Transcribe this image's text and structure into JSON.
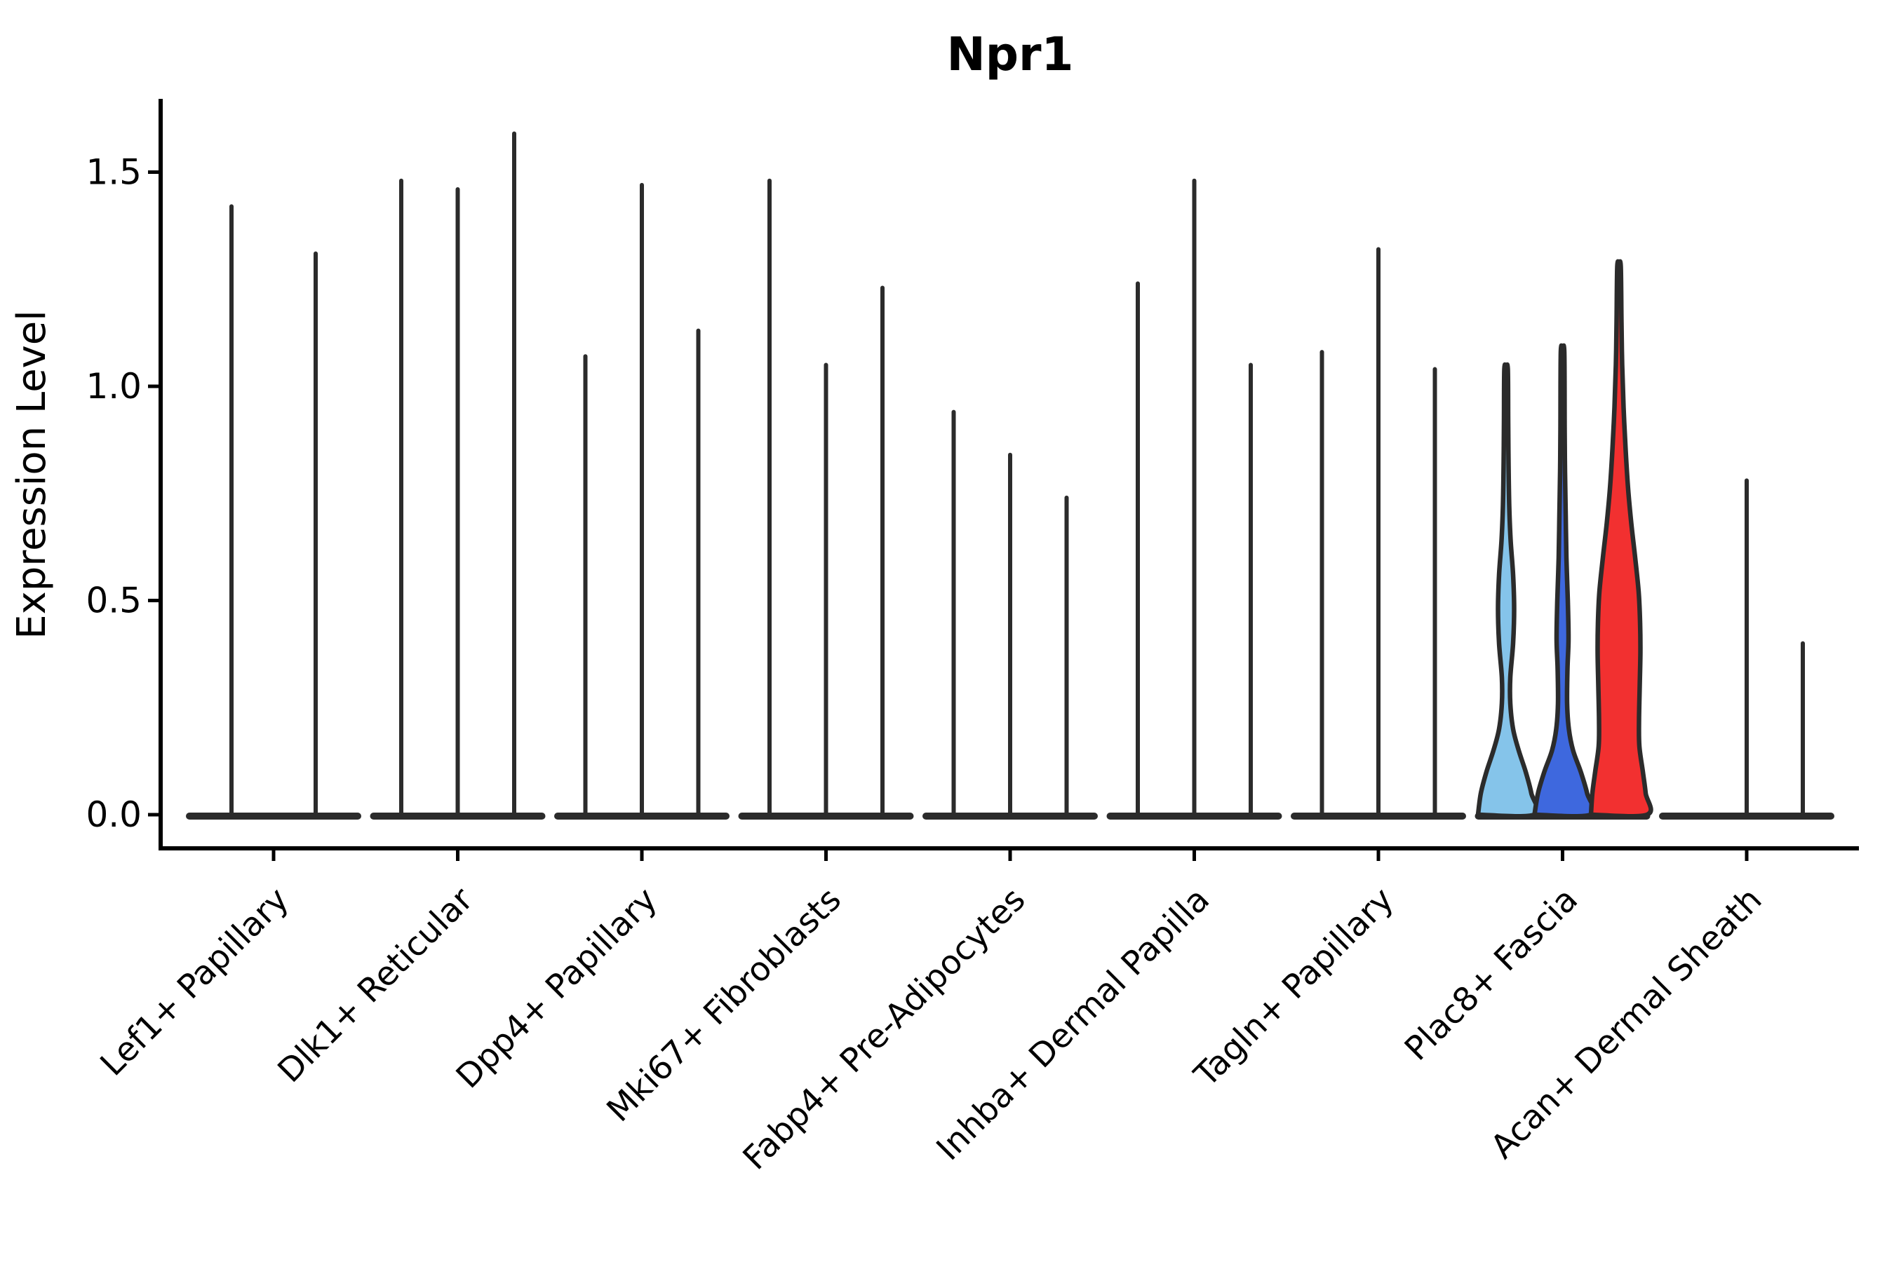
{
  "chart_data": {
    "type": "violin",
    "title": "Npr1",
    "xlabel": "",
    "ylabel": "Expression Level",
    "ytick_labels": [
      "0.0",
      "0.5",
      "1.0",
      "1.5"
    ],
    "ytick_values": [
      0.0,
      0.5,
      1.0,
      1.5
    ],
    "ylim": [
      -0.08,
      1.67
    ],
    "grid": false,
    "legend": null,
    "edge_color": "#2b2b2b",
    "axis_color": "#000000",
    "highlight_colors": {
      "sky_blue": "#85C4EA",
      "royal_blue": "#3E68DE",
      "red": "#F23030"
    },
    "categories": [
      "Lef1+ Papillary",
      "Dlk1+ Reticular",
      "Dpp4+ Papillary",
      "Mki67+ Fibroblasts",
      "Fabp4+ Pre-Adipocytes",
      "Inhba+ Dermal Papilla",
      "Tagln+ Papillary",
      "Plac8+ Fascia",
      "Acan+ Dermal Sheath"
    ],
    "groups": [
      {
        "category": "Lef1+ Papillary",
        "offsets": [
          -60,
          60
        ],
        "violins": [
          {
            "type": "spike",
            "max": 1.42
          },
          {
            "type": "spike",
            "max": 1.31
          }
        ]
      },
      {
        "category": "Dlk1+ Reticular",
        "offsets": [
          -80.5,
          0,
          80.5
        ],
        "violins": [
          {
            "type": "spike",
            "max": 1.48
          },
          {
            "type": "spike",
            "max": 1.46
          },
          {
            "type": "spike",
            "max": 1.59
          }
        ]
      },
      {
        "category": "Dpp4+ Papillary",
        "offsets": [
          -80.5,
          0,
          80.5
        ],
        "violins": [
          {
            "type": "spike",
            "max": 1.07
          },
          {
            "type": "spike",
            "max": 1.47
          },
          {
            "type": "spike",
            "max": 1.13
          }
        ]
      },
      {
        "category": "Mki67+ Fibroblasts",
        "offsets": [
          -80.5,
          0,
          80.5
        ],
        "violins": [
          {
            "type": "spike",
            "max": 1.48
          },
          {
            "type": "spike",
            "max": 1.05
          },
          {
            "type": "spike",
            "max": 1.23
          }
        ]
      },
      {
        "category": "Fabp4+ Pre-Adipocytes",
        "offsets": [
          -80.5,
          0,
          80.5
        ],
        "violins": [
          {
            "type": "spike",
            "max": 0.94
          },
          {
            "type": "spike",
            "max": 0.84
          },
          {
            "type": "spike",
            "max": 0.74
          }
        ]
      },
      {
        "category": "Inhba+ Dermal Papilla",
        "offsets": [
          -80.5,
          0,
          80.5
        ],
        "violins": [
          {
            "type": "spike",
            "max": 1.24
          },
          {
            "type": "spike",
            "max": 1.48
          },
          {
            "type": "spike",
            "max": 1.05
          }
        ]
      },
      {
        "category": "Tagln+ Papillary",
        "offsets": [
          -80.5,
          0,
          80.5
        ],
        "violins": [
          {
            "type": "spike",
            "max": 1.08
          },
          {
            "type": "spike",
            "max": 1.32
          },
          {
            "type": "spike",
            "max": 1.04
          }
        ]
      },
      {
        "category": "Plac8+ Fascia",
        "offsets": [
          -80.5,
          0,
          80.5
        ],
        "violins": [
          {
            "type": "filled",
            "max": 1.04,
            "fill": "#85C4EA",
            "profile": [
              [
                0,
                40
              ],
              [
                0.05,
                36
              ],
              [
                0.1,
                28
              ],
              [
                0.15,
                18
              ],
              [
                0.2,
                10
              ],
              [
                0.26,
                6
              ],
              [
                0.32,
                6
              ],
              [
                0.4,
                10
              ],
              [
                0.48,
                11.5
              ],
              [
                0.56,
                10
              ],
              [
                0.64,
                6.5
              ],
              [
                0.72,
                4.5
              ],
              [
                0.82,
                3.5
              ],
              [
                0.92,
                3
              ],
              [
                1.04,
                2.5
              ]
            ]
          },
          {
            "type": "filled",
            "max": 1.08,
            "fill": "#3E68DE",
            "profile": [
              [
                0,
                40
              ],
              [
                0.05,
                35
              ],
              [
                0.1,
                26
              ],
              [
                0.15,
                15
              ],
              [
                0.2,
                9
              ],
              [
                0.26,
                6.5
              ],
              [
                0.34,
                7
              ],
              [
                0.41,
                8.5
              ],
              [
                0.5,
                7.5
              ],
              [
                0.6,
                5.5
              ],
              [
                0.7,
                4.5
              ],
              [
                0.8,
                3.5
              ],
              [
                0.9,
                3
              ],
              [
                1.08,
                2.5
              ]
            ]
          },
          {
            "type": "filled",
            "max": 1.28,
            "fill": "#F23030",
            "profile": [
              [
                0,
                40
              ],
              [
                0.05,
                38
              ],
              [
                0.1,
                34
              ],
              [
                0.16,
                29
              ],
              [
                0.22,
                28.5
              ],
              [
                0.3,
                29.5
              ],
              [
                0.38,
                30.5
              ],
              [
                0.45,
                30
              ],
              [
                0.52,
                28
              ],
              [
                0.6,
                23
              ],
              [
                0.68,
                17.5
              ],
              [
                0.76,
                13
              ],
              [
                0.85,
                9.5
              ],
              [
                0.95,
                6.5
              ],
              [
                1.05,
                4.5
              ],
              [
                1.15,
                3.5
              ],
              [
                1.28,
                2.5
              ]
            ]
          }
        ]
      },
      {
        "category": "Acan+ Dermal Sheath",
        "offsets": [
          -80,
          0,
          80
        ],
        "violins": [
          {
            "type": "flat",
            "max": 0.0
          },
          {
            "type": "spike",
            "max": 0.78
          },
          {
            "type": "spike",
            "max": 0.4
          }
        ]
      }
    ],
    "group_baseline_half_width": 120
  }
}
